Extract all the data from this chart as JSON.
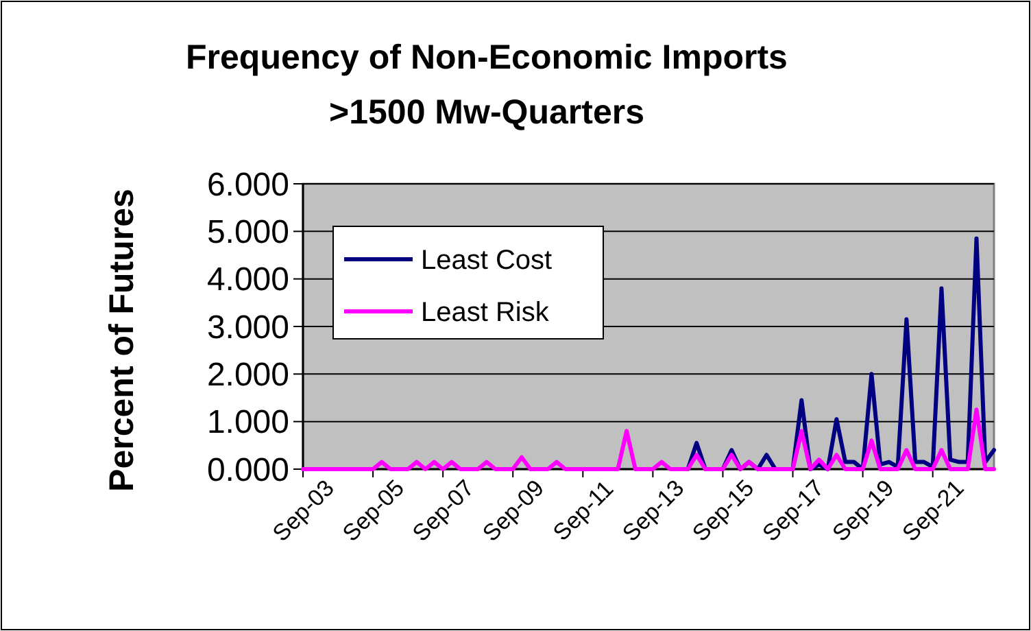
{
  "chart_data": {
    "type": "line",
    "title": "Frequency of Non-Economic Imports\n>1500 Mw-Quarters",
    "ylabel": "Percent of Futures",
    "categories": [
      "Sep-03",
      null,
      null,
      null,
      null,
      null,
      null,
      null,
      "Sep-05",
      null,
      null,
      null,
      null,
      null,
      null,
      null,
      "Sep-07",
      null,
      null,
      null,
      null,
      null,
      null,
      null,
      "Sep-09",
      null,
      null,
      null,
      null,
      null,
      null,
      null,
      "Sep-11",
      null,
      null,
      null,
      null,
      null,
      null,
      null,
      "Sep-13",
      null,
      null,
      null,
      null,
      null,
      null,
      null,
      "Sep-15",
      null,
      null,
      null,
      null,
      null,
      null,
      null,
      "Sep-17",
      null,
      null,
      null,
      null,
      null,
      null,
      null,
      "Sep-19",
      null,
      null,
      null,
      null,
      null,
      null,
      null,
      "Sep-21",
      null,
      null,
      null,
      null,
      null,
      null,
      null
    ],
    "series": [
      {
        "name": "Least Cost",
        "color": "#000080",
        "values": [
          null,
          null,
          null,
          null,
          null,
          null,
          null,
          null,
          null,
          null,
          null,
          null,
          null,
          null,
          null,
          null,
          null,
          null,
          null,
          null,
          null,
          null,
          null,
          null,
          null,
          null,
          null,
          null,
          null,
          null,
          null,
          null,
          null,
          null,
          null,
          null,
          null,
          null,
          null,
          null,
          null,
          null,
          null,
          null,
          0,
          0.55,
          0,
          0,
          0,
          0.4,
          0,
          0.15,
          0,
          0.3,
          0,
          0,
          0,
          1.45,
          0,
          0.1,
          0,
          1.05,
          0.15,
          0.15,
          0,
          2.0,
          0.1,
          0.15,
          0.05,
          3.15,
          0.15,
          0.15,
          0.05,
          3.8,
          0.2,
          0.15,
          0.15,
          4.85,
          0.15,
          0.4
        ]
      },
      {
        "name": "Least Risk",
        "color": "#ff00ff",
        "values": [
          0,
          0,
          0,
          0,
          0,
          0,
          0,
          0,
          0,
          0.15,
          0,
          0,
          0,
          0.15,
          0,
          0.15,
          0,
          0.15,
          0,
          0,
          0,
          0.15,
          0,
          0,
          0,
          0.25,
          0,
          0,
          0,
          0.15,
          0,
          0,
          0,
          0,
          0,
          0,
          0,
          0.8,
          0,
          0,
          0,
          0.15,
          0,
          0,
          0,
          0.3,
          0,
          0,
          0,
          0.3,
          0,
          0.15,
          0,
          0,
          0,
          0,
          0,
          0.8,
          0,
          0.2,
          0,
          0.3,
          0,
          0,
          0,
          0.6,
          0,
          0,
          0,
          0.4,
          0,
          0,
          0,
          0.4,
          0,
          0,
          0,
          1.25,
          0,
          0
        ]
      }
    ],
    "ylim": [
      0,
      6
    ],
    "yticks": [
      {
        "value": 0,
        "label": "0.000"
      },
      {
        "value": 1,
        "label": "1.000"
      },
      {
        "value": 2,
        "label": "2.000"
      },
      {
        "value": 3,
        "label": "3.000"
      },
      {
        "value": 4,
        "label": "4.000"
      },
      {
        "value": 5,
        "label": "5.000"
      },
      {
        "value": 6,
        "label": "6.000"
      }
    ],
    "grid": "y",
    "legend": "top left",
    "marker": "none",
    "line_style": "solid"
  }
}
